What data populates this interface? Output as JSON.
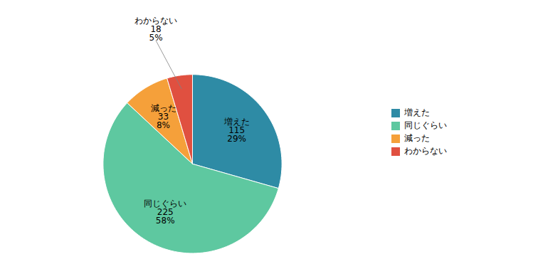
{
  "chart_data": {
    "type": "pie",
    "categories": [
      "増えた",
      "同じぐらい",
      "減った",
      "わからない"
    ],
    "values": [
      115,
      225,
      33,
      18
    ],
    "percentages": [
      29,
      58,
      8,
      5
    ],
    "percentage_labels": [
      "29%",
      "58%",
      "8%",
      "5%"
    ],
    "colors": [
      "#2E8BA5",
      "#5EC8A0",
      "#F5A03A",
      "#E05040"
    ],
    "data_labels": true,
    "legend": "right"
  }
}
